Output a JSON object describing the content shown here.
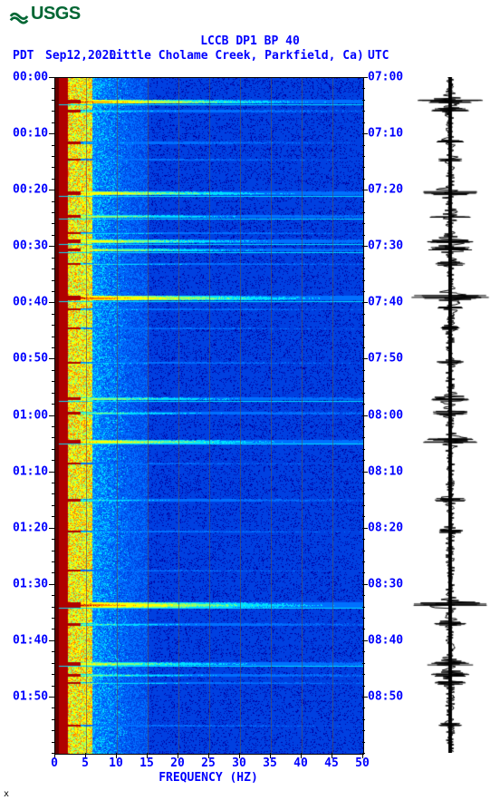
{
  "logo": {
    "text": "USGS",
    "color": "#006633"
  },
  "header": {
    "title": "LCCB DP1 BP 40",
    "pdt_label": "PDT",
    "date": "Sep12,2020",
    "location": "Little Cholame Creek, Parkfield, Ca)",
    "utc_label": "UTC"
  },
  "spectrogram": {
    "type": "spectrogram",
    "x_axis_title": "FREQUENCY (HZ)",
    "xlim": [
      0,
      50
    ],
    "xticks": [
      0,
      5,
      10,
      15,
      20,
      25,
      30,
      35,
      40,
      45,
      50
    ],
    "y_major_step_minutes": 10,
    "time_span_minutes": 120,
    "left_times": [
      "00:00",
      "00:10",
      "00:20",
      "00:30",
      "00:40",
      "00:50",
      "01:00",
      "01:10",
      "01:20",
      "01:30",
      "01:40",
      "01:50"
    ],
    "right_times": [
      "07:00",
      "07:10",
      "07:20",
      "07:30",
      "07:40",
      "07:50",
      "08:00",
      "08:10",
      "08:20",
      "08:30",
      "08:40",
      "08:50"
    ],
    "colors": {
      "bg_low": "#0000a0",
      "bg_mid": "#0040e0",
      "bg_high": "#0070ff",
      "cyan": "#00e0ff",
      "green": "#80ff80",
      "yellow": "#ffff00",
      "orange": "#ff8000",
      "red": "#b00000",
      "dark_red": "#600000"
    },
    "low_freq_band": {
      "start_hz": 0,
      "end_hz": 6,
      "intensity": 1.0
    },
    "mid_freq_fade": {
      "start_hz": 6,
      "end_hz": 15,
      "intensity": 0.5
    },
    "grid_vlines_hz": [
      5,
      10,
      15,
      20,
      25,
      30,
      35,
      40,
      45
    ],
    "event_bands": [
      {
        "t": 4.2,
        "strength": 0.95,
        "width": 1.0
      },
      {
        "t": 5.8,
        "strength": 0.5,
        "width": 0.6
      },
      {
        "t": 11.5,
        "strength": 0.4,
        "width": 0.6
      },
      {
        "t": 14.5,
        "strength": 0.35,
        "width": 0.5
      },
      {
        "t": 20.5,
        "strength": 0.85,
        "width": 0.9
      },
      {
        "t": 24.5,
        "strength": 0.7,
        "width": 0.7
      },
      {
        "t": 27.5,
        "strength": 0.45,
        "width": 0.5
      },
      {
        "t": 29.0,
        "strength": 0.8,
        "width": 0.8
      },
      {
        "t": 30.5,
        "strength": 0.75,
        "width": 0.7
      },
      {
        "t": 33.0,
        "strength": 0.5,
        "width": 0.5
      },
      {
        "t": 39.0,
        "strength": 1.0,
        "width": 1.2
      },
      {
        "t": 41.0,
        "strength": 0.4,
        "width": 0.5
      },
      {
        "t": 44.5,
        "strength": 0.35,
        "width": 0.5
      },
      {
        "t": 50.5,
        "strength": 0.4,
        "width": 0.5
      },
      {
        "t": 57.0,
        "strength": 0.7,
        "width": 0.7
      },
      {
        "t": 59.5,
        "strength": 0.6,
        "width": 0.6
      },
      {
        "t": 64.5,
        "strength": 0.85,
        "width": 0.9
      },
      {
        "t": 68.5,
        "strength": 0.3,
        "width": 0.4
      },
      {
        "t": 75.0,
        "strength": 0.5,
        "width": 0.6
      },
      {
        "t": 80.5,
        "strength": 0.4,
        "width": 0.5
      },
      {
        "t": 87.5,
        "strength": 0.3,
        "width": 0.4
      },
      {
        "t": 93.5,
        "strength": 1.0,
        "width": 1.4
      },
      {
        "t": 97.0,
        "strength": 0.55,
        "width": 0.6
      },
      {
        "t": 104.0,
        "strength": 0.75,
        "width": 0.8
      },
      {
        "t": 106.0,
        "strength": 0.6,
        "width": 0.6
      },
      {
        "t": 107.5,
        "strength": 0.5,
        "width": 0.5
      },
      {
        "t": 115.0,
        "strength": 0.35,
        "width": 0.5
      }
    ]
  },
  "waveform": {
    "type": "waveform",
    "color": "#000000",
    "background": "#ffffff",
    "baseline_amp": 0.12,
    "events": [
      {
        "t": 4.2,
        "amp": 0.85
      },
      {
        "t": 5.8,
        "amp": 0.5
      },
      {
        "t": 11.5,
        "amp": 0.35
      },
      {
        "t": 14.5,
        "amp": 0.3
      },
      {
        "t": 20.5,
        "amp": 0.7
      },
      {
        "t": 24.5,
        "amp": 0.55
      },
      {
        "t": 29.0,
        "amp": 0.65
      },
      {
        "t": 30.5,
        "amp": 0.6
      },
      {
        "t": 33.0,
        "amp": 0.4
      },
      {
        "t": 39.0,
        "amp": 1.0
      },
      {
        "t": 41.0,
        "amp": 0.35
      },
      {
        "t": 44.5,
        "amp": 0.3
      },
      {
        "t": 50.5,
        "amp": 0.35
      },
      {
        "t": 57.0,
        "amp": 0.55
      },
      {
        "t": 59.5,
        "amp": 0.5
      },
      {
        "t": 64.5,
        "amp": 0.7
      },
      {
        "t": 75.0,
        "amp": 0.4
      },
      {
        "t": 80.5,
        "amp": 0.35
      },
      {
        "t": 93.5,
        "amp": 1.0
      },
      {
        "t": 97.0,
        "amp": 0.45
      },
      {
        "t": 104.0,
        "amp": 0.6
      },
      {
        "t": 106.0,
        "amp": 0.5
      },
      {
        "t": 107.5,
        "amp": 0.4
      },
      {
        "t": 115.0,
        "amp": 0.3
      }
    ]
  },
  "footer": {
    "mark": "x"
  }
}
